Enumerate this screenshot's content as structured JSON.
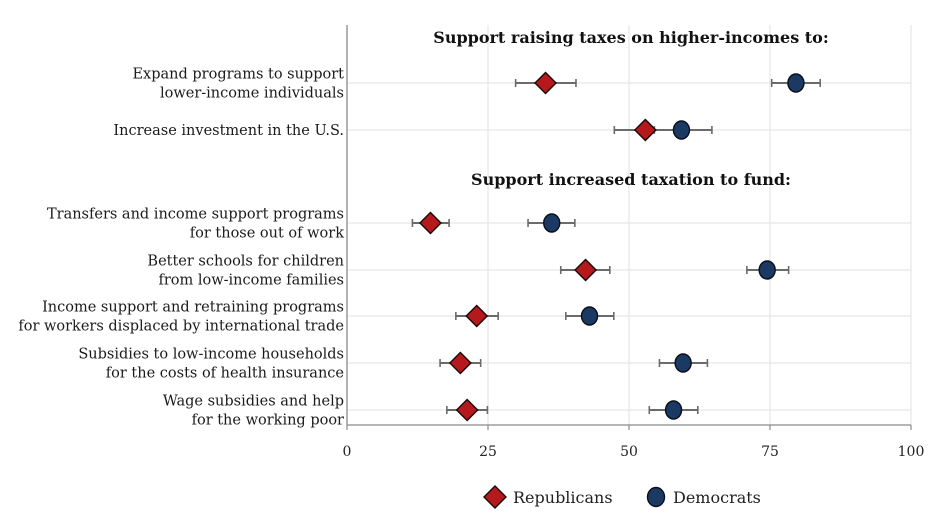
{
  "chart_data": {
    "type": "scatter",
    "subtype": "dot-plot-with-error-bars",
    "title": "",
    "xlabel": "",
    "ylabel": "",
    "xlim": [
      0,
      100
    ],
    "xticks": [
      0,
      25,
      50,
      75,
      100
    ],
    "grid": true,
    "legend_position": "bottom-center",
    "colors": {
      "Republicans": "#b5191c",
      "Democrats": "#1b3a63",
      "outline": "#1a0a0a",
      "errorbar": "#6b6b6b",
      "grid": "#e6e6e6",
      "axis": "#8a8a8a"
    },
    "legend": [
      {
        "name": "Republicans",
        "marker": "diamond"
      },
      {
        "name": "Democrats",
        "marker": "circle"
      }
    ],
    "sections": [
      {
        "header": "Support raising taxes on higher-incomes to:",
        "rows": [
          {
            "label": [
              "Expand programs to support",
              "lower-income individuals"
            ],
            "Republicans": {
              "value": 35.2,
              "ci": [
                29.9,
                40.6
              ]
            },
            "Democrats": {
              "value": 79.6,
              "ci": [
                75.3,
                83.9
              ]
            }
          },
          {
            "label": [
              "Increase investment in the U.S."
            ],
            "Republicans": {
              "value": 52.9,
              "ci": [
                47.4,
                58.0
              ]
            },
            "Democrats": {
              "value": 59.3,
              "ci": [
                54.5,
                64.7
              ]
            }
          }
        ]
      },
      {
        "header": "Support increased taxation to fund:",
        "rows": [
          {
            "label": [
              "Transfers and income support programs",
              "for those out of work"
            ],
            "Republicans": {
              "value": 14.8,
              "ci": [
                11.6,
                18.1
              ]
            },
            "Democrats": {
              "value": 36.3,
              "ci": [
                32.1,
                40.4
              ]
            }
          },
          {
            "label": [
              "Better schools for children",
              "from low-income families"
            ],
            "Republicans": {
              "value": 42.3,
              "ci": [
                37.9,
                46.6
              ]
            },
            "Democrats": {
              "value": 74.5,
              "ci": [
                70.9,
                78.3
              ]
            }
          },
          {
            "label": [
              "Income support and retraining programs",
              "for workers displaced by international trade"
            ],
            "Republicans": {
              "value": 23.0,
              "ci": [
                19.3,
                26.8
              ]
            },
            "Democrats": {
              "value": 43.0,
              "ci": [
                38.8,
                47.3
              ]
            }
          },
          {
            "label": [
              "Subsidies to low-income households",
              "for the costs of health insurance"
            ],
            "Republicans": {
              "value": 20.1,
              "ci": [
                16.5,
                23.7
              ]
            },
            "Democrats": {
              "value": 59.6,
              "ci": [
                55.4,
                63.9
              ]
            }
          },
          {
            "label": [
              "Wage subsidies and help",
              "for the working poor"
            ],
            "Republicans": {
              "value": 21.3,
              "ci": [
                17.7,
                24.9
              ]
            },
            "Democrats": {
              "value": 57.9,
              "ci": [
                53.6,
                62.2
              ]
            }
          }
        ]
      }
    ]
  }
}
